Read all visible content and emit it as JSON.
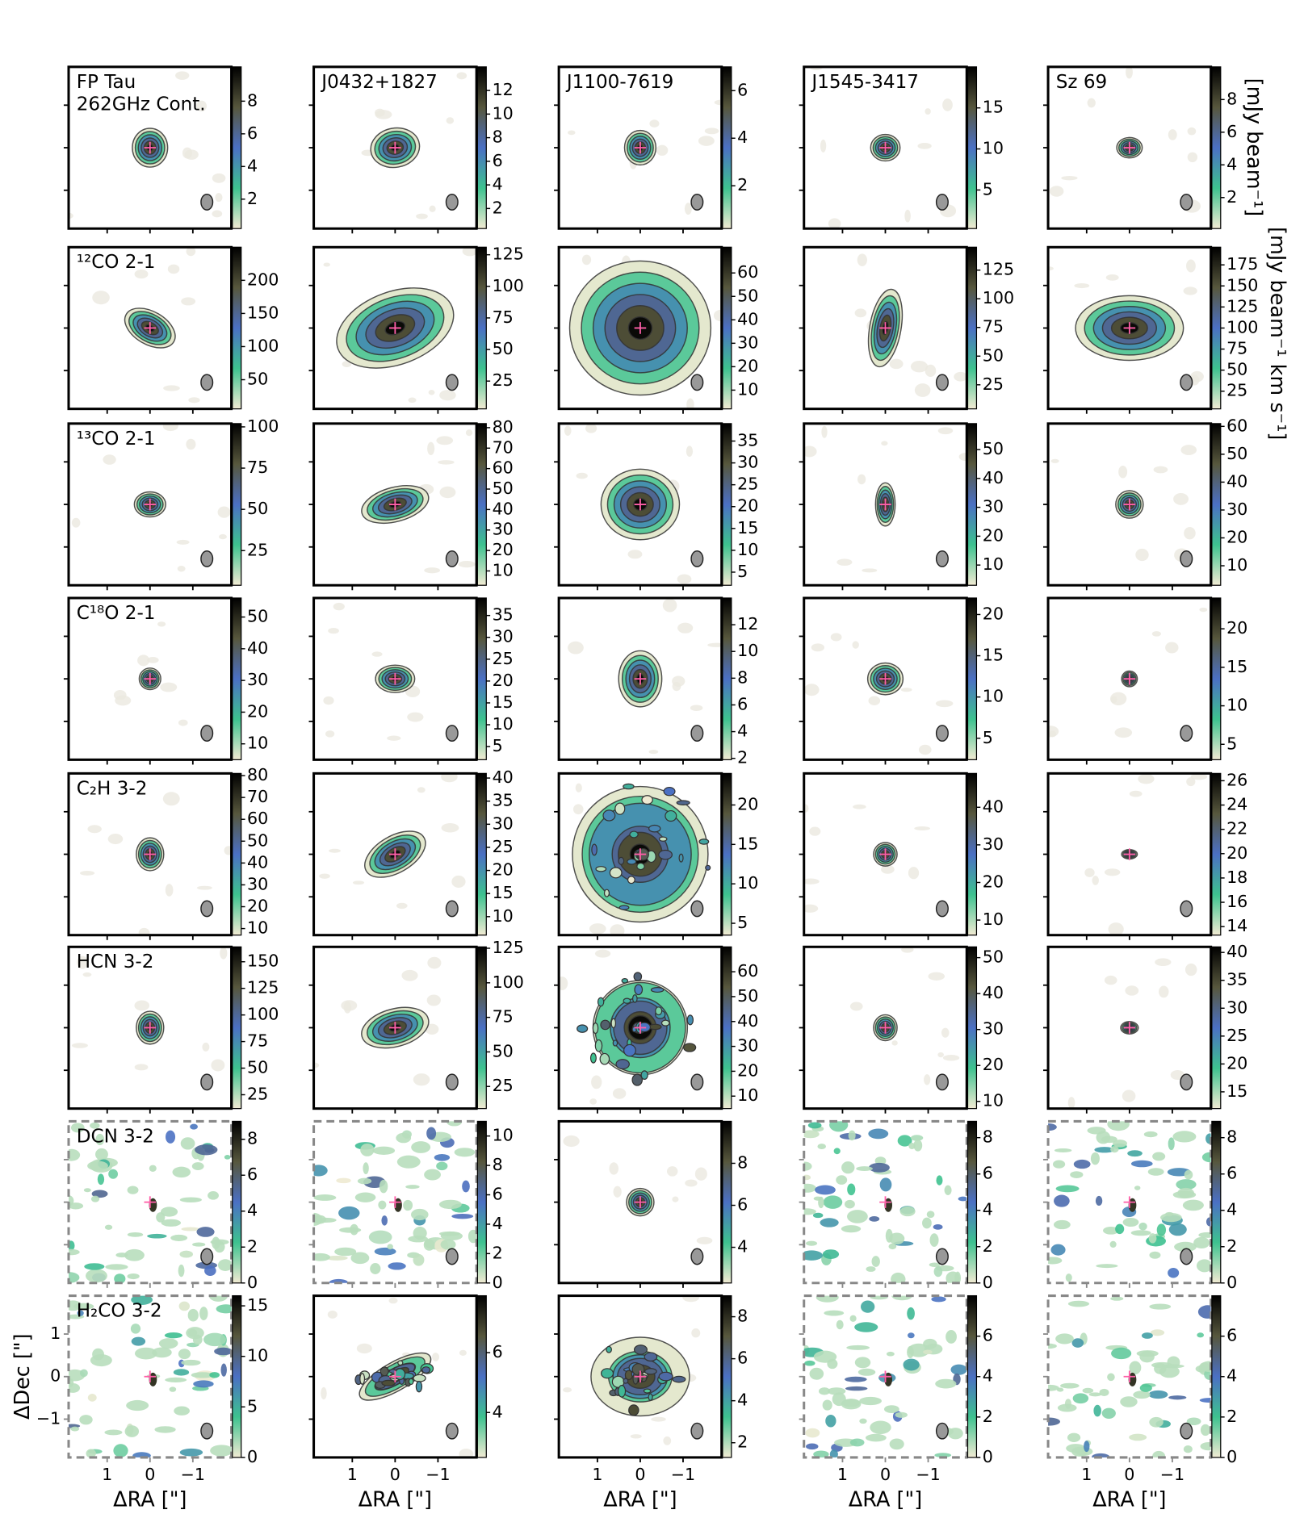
{
  "colormap": [
    "#f2ebd3",
    "#3ec28f",
    "#4b70c4",
    "#57573d",
    "#000000"
  ],
  "colorbar_labels": [
    "[mJy beam⁻¹]",
    "[mJy beam⁻¹ km s⁻¹]"
  ],
  "axes": {
    "xlim": [
      1.9,
      -1.9
    ],
    "ylim": [
      -1.9,
      1.9
    ],
    "xticks": [
      1,
      0,
      {
        "value": -1,
        "label": "−1"
      }
    ],
    "yticks": [
      1,
      0,
      {
        "value": -1,
        "label": "−1"
      }
    ],
    "xlabel": "ΔRA [\"]",
    "ylabel": "ΔDec [\"]"
  },
  "chart_data": [
    {
      "type": "image",
      "title": "FP Tau",
      "subtitle": "262GHz Cont.",
      "clim": [
        0.2,
        10.1
      ],
      "cticks": [
        2,
        4,
        6,
        8
      ],
      "frame": "solid"
    },
    {
      "type": "image",
      "title": "J0432+1827",
      "clim": [
        0.3,
        14
      ],
      "cticks": [
        2,
        4,
        6,
        8,
        10,
        12
      ],
      "frame": "solid"
    },
    {
      "type": "image",
      "title": "J1100-7619",
      "clim": [
        0.2,
        7
      ],
      "cticks": [
        2,
        4,
        6
      ],
      "frame": "solid"
    },
    {
      "type": "image",
      "title": "J1545-3417",
      "clim": [
        0.3,
        20
      ],
      "cticks": [
        5,
        10,
        15
      ],
      "frame": "solid"
    },
    {
      "type": "image",
      "title": "Sz 69",
      "clim": [
        0.1,
        10
      ],
      "cticks": [
        2,
        4,
        6,
        8
      ],
      "frame": "solid"
    },
    {
      "type": "image",
      "title": "¹²CO 2-1",
      "clim": [
        6,
        250
      ],
      "cticks": [
        50,
        100,
        150,
        200
      ],
      "frame": "solid"
    },
    {
      "type": "image",
      "clim": [
        3,
        131
      ],
      "cticks": [
        25,
        50,
        75,
        100,
        125
      ],
      "frame": "solid"
    },
    {
      "type": "image",
      "clim": [
        2,
        71
      ],
      "cticks": [
        10,
        20,
        30,
        40,
        50,
        60
      ],
      "frame": "solid"
    },
    {
      "type": "image",
      "clim": [
        4,
        145
      ],
      "cticks": [
        25,
        50,
        75,
        100,
        125
      ],
      "frame": "solid"
    },
    {
      "type": "image",
      "clim": [
        4,
        196
      ],
      "cticks": [
        25,
        50,
        75,
        100,
        125,
        150,
        175
      ],
      "frame": "solid"
    },
    {
      "type": "image",
      "title": "¹³CO 2-1",
      "clim": [
        4,
        102
      ],
      "cticks": [
        25,
        50,
        75,
        100
      ],
      "frame": "solid"
    },
    {
      "type": "image",
      "clim": [
        3,
        82
      ],
      "cticks": [
        10,
        20,
        30,
        40,
        50,
        60,
        70,
        80
      ],
      "frame": "solid"
    },
    {
      "type": "image",
      "clim": [
        2,
        39
      ],
      "cticks": [
        5,
        10,
        15,
        20,
        25,
        30,
        35
      ],
      "frame": "solid"
    },
    {
      "type": "image",
      "clim": [
        3,
        59
      ],
      "cticks": [
        10,
        20,
        30,
        40,
        50
      ],
      "frame": "solid"
    },
    {
      "type": "image",
      "clim": [
        3,
        61
      ],
      "cticks": [
        10,
        20,
        30,
        40,
        50,
        60
      ],
      "frame": "solid"
    },
    {
      "type": "image",
      "title": "C¹⁸O 2-1",
      "clim": [
        5,
        56
      ],
      "cticks": [
        10,
        20,
        30,
        40,
        50
      ],
      "frame": "solid"
    },
    {
      "type": "image",
      "clim": [
        2,
        39
      ],
      "cticks": [
        5,
        10,
        15,
        20,
        25,
        30,
        35
      ],
      "frame": "solid"
    },
    {
      "type": "image",
      "clim": [
        1.9,
        14
      ],
      "cticks": [
        2,
        4,
        6,
        8,
        10,
        12
      ],
      "frame": "solid"
    },
    {
      "type": "image",
      "clim": [
        2.4,
        22
      ],
      "cticks": [
        5,
        10,
        15,
        20
      ],
      "frame": "solid"
    },
    {
      "type": "image",
      "clim": [
        3,
        24
      ],
      "cticks": [
        5,
        10,
        15,
        20
      ],
      "frame": "solid"
    },
    {
      "type": "image",
      "title": "C₂H 3-2",
      "clim": [
        7,
        81
      ],
      "cticks": [
        10,
        20,
        30,
        40,
        50,
        60,
        70,
        80
      ],
      "frame": "solid"
    },
    {
      "type": "image",
      "clim": [
        6,
        41
      ],
      "cticks": [
        10,
        15,
        20,
        25,
        30,
        35,
        40
      ],
      "frame": "solid"
    },
    {
      "type": "image",
      "clim": [
        3.5,
        24
      ],
      "cticks": [
        5,
        10,
        15,
        20
      ],
      "frame": "solid"
    },
    {
      "type": "image",
      "clim": [
        6,
        49
      ],
      "cticks": [
        10,
        20,
        30,
        40
      ],
      "frame": "solid"
    },
    {
      "type": "image",
      "clim": [
        13.3,
        26.6
      ],
      "cticks": [
        14,
        16,
        18,
        20,
        22,
        24,
        26
      ],
      "frame": "solid"
    },
    {
      "type": "image",
      "title": "HCN 3-2",
      "clim": [
        12,
        164
      ],
      "cticks": [
        25,
        50,
        75,
        100,
        125,
        150
      ],
      "frame": "solid"
    },
    {
      "type": "image",
      "clim": [
        9,
        126
      ],
      "cticks": [
        25,
        50,
        75,
        100,
        125
      ],
      "frame": "solid"
    },
    {
      "type": "image",
      "clim": [
        5,
        70
      ],
      "cticks": [
        10,
        20,
        30,
        40,
        50,
        60
      ],
      "frame": "solid"
    },
    {
      "type": "image",
      "clim": [
        8,
        53
      ],
      "cticks": [
        10,
        20,
        30,
        40,
        50
      ],
      "frame": "solid"
    },
    {
      "type": "image",
      "clim": [
        12,
        41
      ],
      "cticks": [
        15,
        20,
        25,
        30,
        35,
        40
      ],
      "frame": "solid"
    },
    {
      "type": "image",
      "title": "DCN 3-2",
      "clim": [
        0,
        9
      ],
      "cticks": [
        0,
        2,
        4,
        6,
        8
      ],
      "frame": "dashed"
    },
    {
      "type": "image",
      "clim": [
        0,
        11
      ],
      "cticks": [
        0,
        2,
        4,
        6,
        8,
        10
      ],
      "frame": "dashed"
    },
    {
      "type": "image",
      "clim": [
        2.3,
        10
      ],
      "cticks": [
        4,
        6,
        8
      ],
      "frame": "solid"
    },
    {
      "type": "image",
      "clim": [
        0,
        8.9
      ],
      "cticks": [
        0,
        2,
        4,
        6,
        8
      ],
      "frame": "dashed"
    },
    {
      "type": "image",
      "clim": [
        0,
        8.9
      ],
      "cticks": [
        0,
        2,
        4,
        6,
        8
      ],
      "frame": "dashed"
    },
    {
      "type": "image",
      "title": "H₂CO 3-2",
      "clim": [
        0,
        16
      ],
      "cticks": [
        0,
        5,
        10,
        15
      ],
      "frame": "dashed"
    },
    {
      "type": "image",
      "clim": [
        2.5,
        7.9
      ],
      "cticks": [
        4,
        6
      ],
      "frame": "solid"
    },
    {
      "type": "image",
      "clim": [
        1.3,
        9
      ],
      "cticks": [
        2,
        4,
        6,
        8
      ],
      "frame": "solid"
    },
    {
      "type": "image",
      "clim": [
        0,
        8
      ],
      "cticks": [
        0,
        2,
        4,
        6
      ],
      "frame": "dashed"
    },
    {
      "type": "image",
      "clim": [
        0,
        8
      ],
      "cticks": [
        0,
        2,
        4,
        6
      ],
      "frame": "dashed"
    }
  ]
}
